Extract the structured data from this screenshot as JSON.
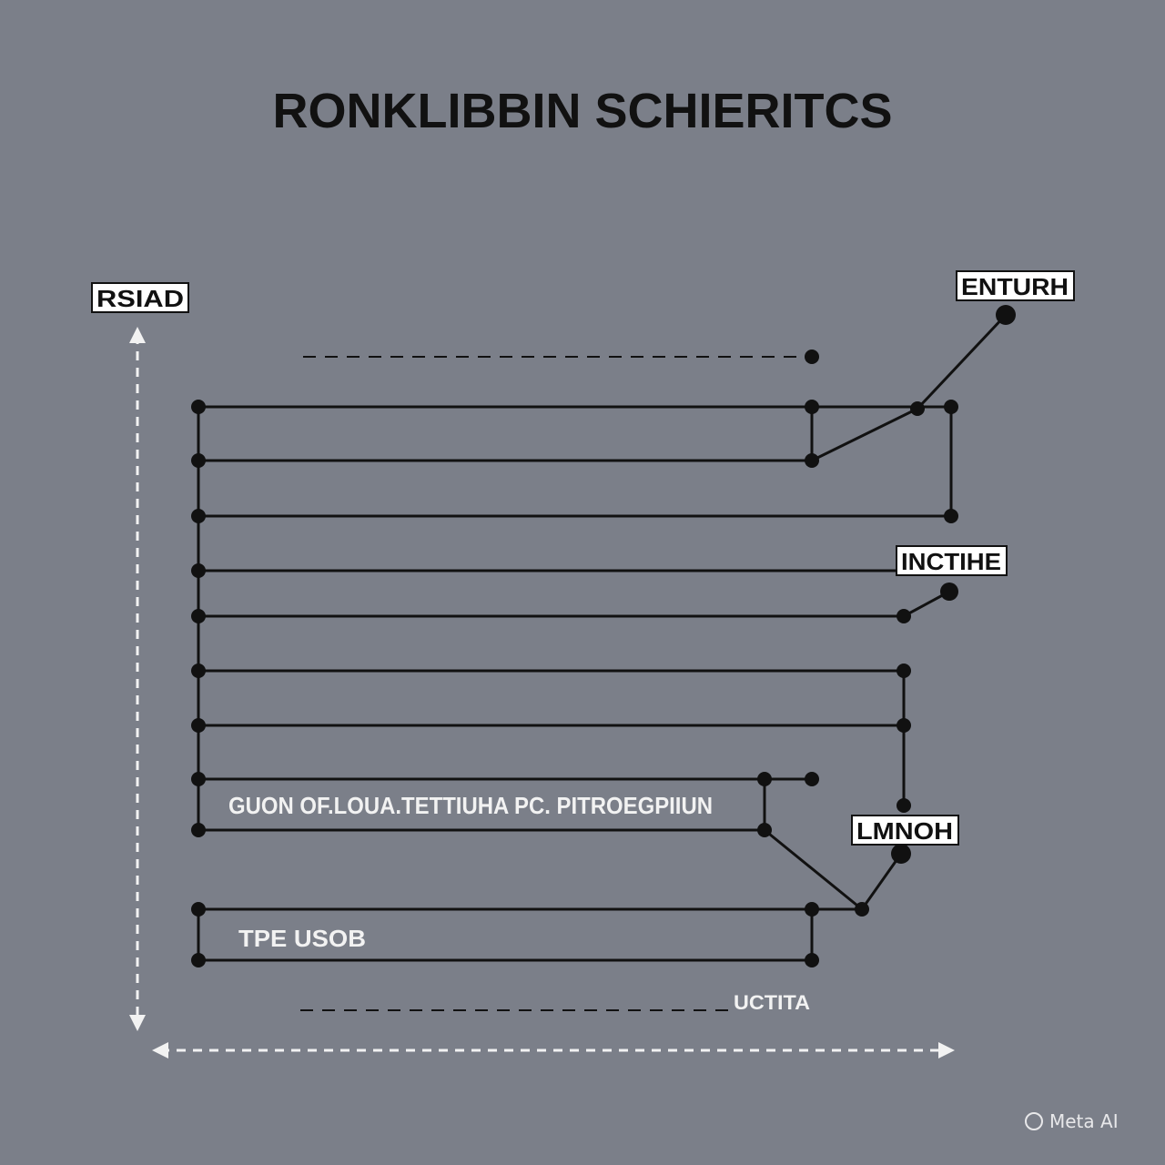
{
  "title": "RONKLIBBIN SCHIERITCS",
  "labels": {
    "top_left": "RSIAD",
    "top_right": "ENTURH",
    "middle_right": "INCTIHE",
    "lower_right": "LMNOH",
    "row_text_1": "GUON OF.LOUA.TETTIUHA PC. PITROEGPIIUN",
    "row_text_2": "TPE USOB",
    "bottom_text": "UCTITA"
  },
  "watermark": "Meta AI",
  "colors": {
    "background": "#7b7f89",
    "line": "#111111",
    "arrow": "#f2f2f2"
  }
}
